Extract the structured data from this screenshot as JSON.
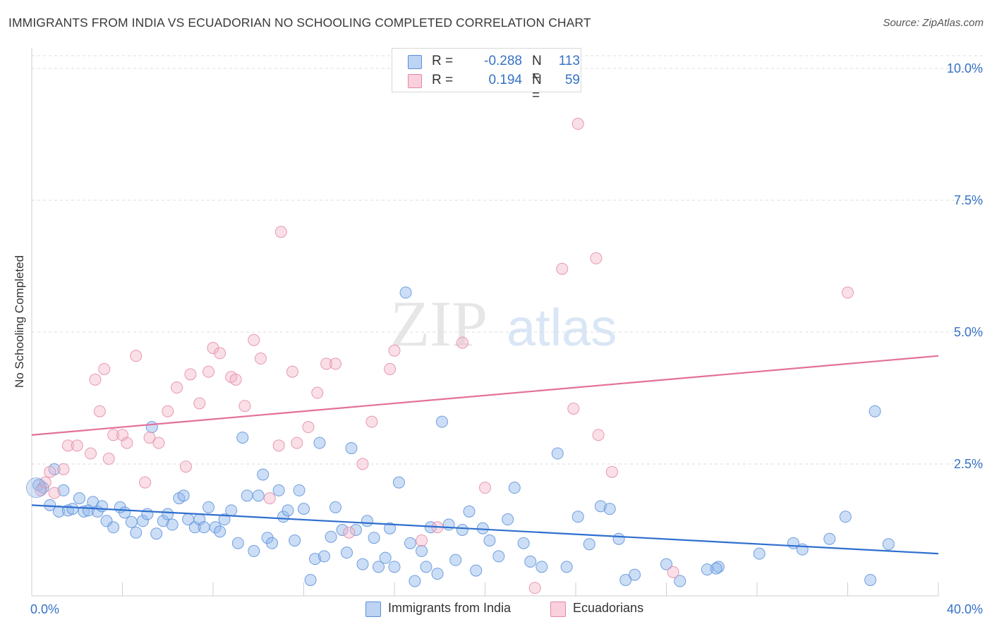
{
  "title": "IMMIGRANTS FROM INDIA VS ECUADORIAN NO SCHOOLING COMPLETED CORRELATION CHART",
  "source": "Source: ZipAtlas.com",
  "watermark": {
    "zip": "ZIP",
    "atlas": "atlas"
  },
  "legend": {
    "rows": [
      {
        "r_label": "R =",
        "r_value": "-0.288",
        "n_label": "N =",
        "n_value": "113",
        "color": "#a9c7f0",
        "border": "#5b8fd9"
      },
      {
        "r_label": "R =",
        "r_value": "0.194",
        "n_label": "N =",
        "n_value": "59",
        "color": "#f7c1d1",
        "border": "#e38aa6"
      }
    ]
  },
  "bottom_legend": {
    "india": "Immigrants from India",
    "ecuadorians": "Ecuadorians"
  },
  "chart_data": {
    "type": "scatter",
    "ylabel": "No Schooling Completed",
    "xlabel": "",
    "x_tick_labels": [
      "0.0%",
      "40.0%"
    ],
    "y_tick_labels": [
      "2.5%",
      "5.0%",
      "7.5%",
      "10.0%"
    ],
    "xlim": [
      0,
      40
    ],
    "ylim": [
      0,
      10.5
    ],
    "y_ticks": [
      2.5,
      5.0,
      7.5,
      10.0
    ],
    "grid": "horizontal dashed",
    "legend_position": "top-center",
    "series": [
      {
        "name": "Immigrants from India",
        "color": "#8fb5ea",
        "stroke": "#5b8fd9",
        "trend_color": "#2f6fce",
        "trend": {
          "x0": 0,
          "y0": 1.72,
          "x1": 40,
          "y1": 0.8
        },
        "points": [
          [
            0.3,
            2.1
          ],
          [
            0.5,
            2.05
          ],
          [
            0.8,
            1.72
          ],
          [
            1.0,
            2.4
          ],
          [
            1.2,
            1.6
          ],
          [
            1.4,
            2.0
          ],
          [
            1.6,
            1.62
          ],
          [
            1.8,
            1.65
          ],
          [
            2.1,
            1.85
          ],
          [
            2.3,
            1.6
          ],
          [
            2.5,
            1.62
          ],
          [
            2.7,
            1.78
          ],
          [
            2.9,
            1.6
          ],
          [
            3.1,
            1.7
          ],
          [
            3.3,
            1.42
          ],
          [
            3.6,
            1.3
          ],
          [
            3.9,
            1.68
          ],
          [
            4.1,
            1.58
          ],
          [
            4.4,
            1.4
          ],
          [
            4.6,
            1.2
          ],
          [
            4.9,
            1.42
          ],
          [
            5.1,
            1.55
          ],
          [
            5.3,
            3.2
          ],
          [
            5.5,
            1.18
          ],
          [
            5.8,
            1.42
          ],
          [
            6.0,
            1.55
          ],
          [
            6.2,
            1.35
          ],
          [
            6.5,
            1.85
          ],
          [
            6.7,
            1.9
          ],
          [
            6.9,
            1.45
          ],
          [
            7.2,
            1.3
          ],
          [
            7.4,
            1.45
          ],
          [
            7.6,
            1.3
          ],
          [
            7.8,
            1.68
          ],
          [
            8.1,
            1.3
          ],
          [
            8.3,
            1.22
          ],
          [
            8.5,
            1.45
          ],
          [
            8.8,
            1.62
          ],
          [
            9.1,
            1.0
          ],
          [
            9.3,
            3.0
          ],
          [
            9.5,
            1.9
          ],
          [
            9.8,
            0.85
          ],
          [
            10.0,
            1.9
          ],
          [
            10.2,
            2.3
          ],
          [
            10.4,
            1.1
          ],
          [
            10.6,
            1.0
          ],
          [
            10.9,
            2.0
          ],
          [
            11.1,
            1.5
          ],
          [
            11.3,
            1.62
          ],
          [
            11.6,
            1.05
          ],
          [
            11.8,
            2.0
          ],
          [
            12.0,
            1.65
          ],
          [
            12.3,
            0.3
          ],
          [
            12.5,
            0.7
          ],
          [
            12.7,
            2.9
          ],
          [
            12.9,
            0.75
          ],
          [
            13.2,
            1.12
          ],
          [
            13.4,
            1.68
          ],
          [
            13.7,
            1.25
          ],
          [
            13.9,
            0.82
          ],
          [
            14.1,
            2.8
          ],
          [
            14.3,
            1.25
          ],
          [
            14.6,
            0.6
          ],
          [
            14.8,
            1.42
          ],
          [
            15.1,
            1.1
          ],
          [
            15.3,
            0.55
          ],
          [
            15.6,
            0.72
          ],
          [
            15.8,
            1.28
          ],
          [
            16.0,
            0.55
          ],
          [
            16.2,
            2.15
          ],
          [
            16.5,
            5.75
          ],
          [
            16.7,
            1.0
          ],
          [
            16.9,
            0.28
          ],
          [
            17.2,
            0.85
          ],
          [
            17.4,
            0.55
          ],
          [
            17.6,
            1.3
          ],
          [
            17.9,
            0.42
          ],
          [
            18.1,
            3.3
          ],
          [
            18.4,
            1.35
          ],
          [
            18.7,
            0.68
          ],
          [
            19.0,
            1.25
          ],
          [
            19.3,
            1.6
          ],
          [
            19.6,
            0.48
          ],
          [
            19.9,
            1.28
          ],
          [
            20.2,
            1.05
          ],
          [
            20.6,
            0.75
          ],
          [
            21.0,
            1.45
          ],
          [
            21.3,
            2.05
          ],
          [
            21.7,
            1.0
          ],
          [
            22.0,
            0.65
          ],
          [
            22.5,
            0.55
          ],
          [
            23.2,
            2.7
          ],
          [
            23.6,
            0.55
          ],
          [
            24.1,
            1.5
          ],
          [
            24.6,
            0.98
          ],
          [
            25.1,
            1.7
          ],
          [
            25.5,
            1.65
          ],
          [
            25.9,
            1.08
          ],
          [
            26.2,
            0.3
          ],
          [
            26.6,
            0.4
          ],
          [
            28.0,
            0.6
          ],
          [
            28.6,
            0.28
          ],
          [
            29.8,
            0.5
          ],
          [
            30.3,
            0.55
          ],
          [
            32.1,
            0.8
          ],
          [
            33.6,
            1.0
          ],
          [
            34.0,
            0.88
          ],
          [
            35.2,
            1.08
          ],
          [
            35.9,
            1.5
          ],
          [
            37.0,
            0.3
          ],
          [
            37.8,
            0.98
          ],
          [
            37.2,
            3.5
          ],
          [
            30.2,
            0.52
          ]
        ]
      },
      {
        "name": "Ecuadorians",
        "color": "#f5b7c9",
        "stroke": "#e38aa6",
        "trend_color": "#e3709a",
        "trend": {
          "x0": 0,
          "y0": 3.05,
          "x1": 40,
          "y1": 4.55
        },
        "points": [
          [
            0.4,
            2.0
          ],
          [
            0.6,
            2.15
          ],
          [
            0.8,
            2.35
          ],
          [
            1.0,
            1.95
          ],
          [
            1.4,
            2.4
          ],
          [
            1.6,
            2.85
          ],
          [
            2.0,
            2.85
          ],
          [
            2.6,
            2.7
          ],
          [
            2.8,
            4.1
          ],
          [
            3.0,
            3.5
          ],
          [
            3.2,
            4.3
          ],
          [
            3.4,
            2.6
          ],
          [
            3.6,
            3.05
          ],
          [
            4.0,
            3.05
          ],
          [
            4.2,
            2.9
          ],
          [
            4.6,
            4.55
          ],
          [
            5.0,
            2.15
          ],
          [
            5.2,
            3.0
          ],
          [
            5.6,
            2.9
          ],
          [
            6.0,
            3.5
          ],
          [
            6.4,
            3.95
          ],
          [
            6.8,
            2.45
          ],
          [
            7.0,
            4.2
          ],
          [
            7.4,
            3.65
          ],
          [
            7.8,
            4.25
          ],
          [
            8.0,
            4.7
          ],
          [
            8.3,
            4.6
          ],
          [
            8.8,
            4.15
          ],
          [
            9.0,
            4.1
          ],
          [
            9.4,
            3.6
          ],
          [
            9.8,
            4.85
          ],
          [
            10.1,
            4.5
          ],
          [
            10.5,
            1.85
          ],
          [
            10.9,
            2.85
          ],
          [
            11.0,
            6.9
          ],
          [
            11.5,
            4.25
          ],
          [
            11.7,
            2.9
          ],
          [
            12.2,
            3.2
          ],
          [
            12.6,
            3.85
          ],
          [
            13.0,
            4.4
          ],
          [
            13.4,
            4.4
          ],
          [
            14.0,
            1.2
          ],
          [
            14.6,
            2.5
          ],
          [
            15.0,
            3.3
          ],
          [
            15.8,
            4.3
          ],
          [
            16.0,
            4.65
          ],
          [
            17.2,
            1.05
          ],
          [
            17.9,
            1.3
          ],
          [
            19.0,
            4.8
          ],
          [
            20.0,
            2.05
          ],
          [
            22.2,
            0.15
          ],
          [
            23.4,
            6.2
          ],
          [
            23.9,
            3.55
          ],
          [
            24.1,
            8.95
          ],
          [
            24.9,
            6.4
          ],
          [
            25.0,
            3.05
          ],
          [
            25.6,
            2.35
          ],
          [
            28.3,
            0.45
          ],
          [
            36.0,
            5.75
          ]
        ]
      }
    ]
  }
}
